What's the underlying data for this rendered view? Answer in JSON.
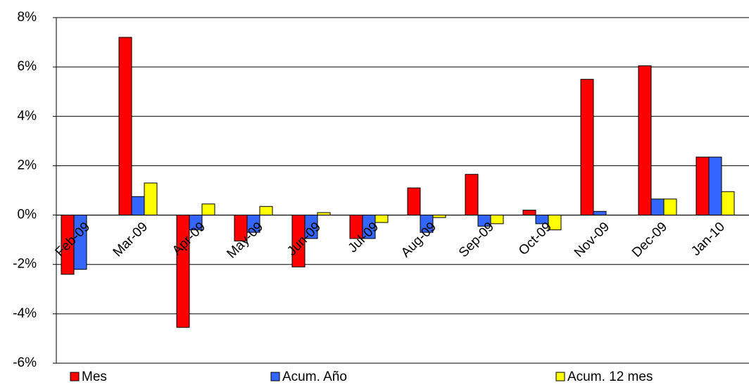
{
  "chart_data": {
    "type": "bar",
    "categories": [
      "Feb-09",
      "Mar-09",
      "Apr-09",
      "May-09",
      "Jun-09",
      "Jul-09",
      "Aug-09",
      "Sep-09",
      "Oct-09",
      "Nov-09",
      "Dec-09",
      "Jan-10"
    ],
    "series": [
      {
        "name": "Mes",
        "color": "#ff0000",
        "values": [
          -2.4,
          7.2,
          -4.55,
          -1.05,
          -2.1,
          -0.95,
          1.1,
          1.65,
          0.2,
          5.5,
          6.05,
          2.35
        ]
      },
      {
        "name": "Acum. Año",
        "color": "#3366ff",
        "values": [
          -2.2,
          0.75,
          -0.6,
          -0.7,
          -0.95,
          -0.95,
          -0.7,
          -0.45,
          -0.35,
          0.15,
          0.65,
          2.35
        ]
      },
      {
        "name": "Acum. 12 mes",
        "color": "#ffff00",
        "values": [
          null,
          1.3,
          0.45,
          0.35,
          0.1,
          -0.3,
          -0.1,
          -0.35,
          -0.6,
          null,
          0.65,
          0.95
        ]
      }
    ],
    "ylim": [
      -6,
      8
    ],
    "yticks": [
      {
        "value": -6,
        "label": "-6%"
      },
      {
        "value": -4,
        "label": "-4%"
      },
      {
        "value": -2,
        "label": "-2%"
      },
      {
        "value": 0,
        "label": "0%"
      },
      {
        "value": 2,
        "label": "2%"
      },
      {
        "value": 4,
        "label": "4%"
      },
      {
        "value": 6,
        "label": "6%"
      },
      {
        "value": 8,
        "label": "8%"
      }
    ],
    "grid": true,
    "legend": "bottom"
  }
}
